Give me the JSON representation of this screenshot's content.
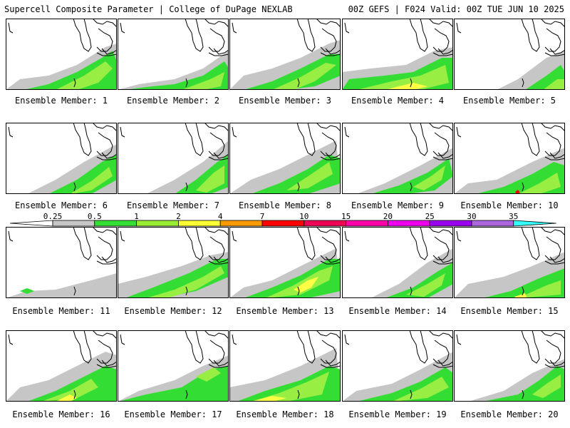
{
  "header": {
    "title": "Supercell Composite Parameter | College of DuPage NEXLAB",
    "run_info": "00Z GEFS | F024 Valid: 00Z TUE JUN 10 2025"
  },
  "member_label": "Ensemble Member:",
  "members": [
    1,
    2,
    3,
    4,
    5,
    6,
    7,
    8,
    9,
    10,
    11,
    12,
    13,
    14,
    15,
    16,
    17,
    18,
    19,
    20
  ],
  "colorbar": {
    "ticks": [
      "0.25",
      "0.5",
      "1",
      "2",
      "4",
      "7",
      "10",
      "15",
      "20",
      "25",
      "30",
      "35"
    ],
    "colors": [
      "#c6c6c6",
      "#33e033",
      "#99ee33",
      "#ffff33",
      "#ff9900",
      "#ff0000",
      "#ee0055",
      "#ff00aa",
      "#ee00ee",
      "#9900ee",
      "#aa66dd",
      "#33ffff"
    ]
  },
  "legend_colors": {
    "low": "#c6c6c6",
    "green": "#33dd33",
    "lightgreen": "#99ee44",
    "yellow": "#ffff44",
    "orange": "#ff9900",
    "red": "#ff0000"
  }
}
